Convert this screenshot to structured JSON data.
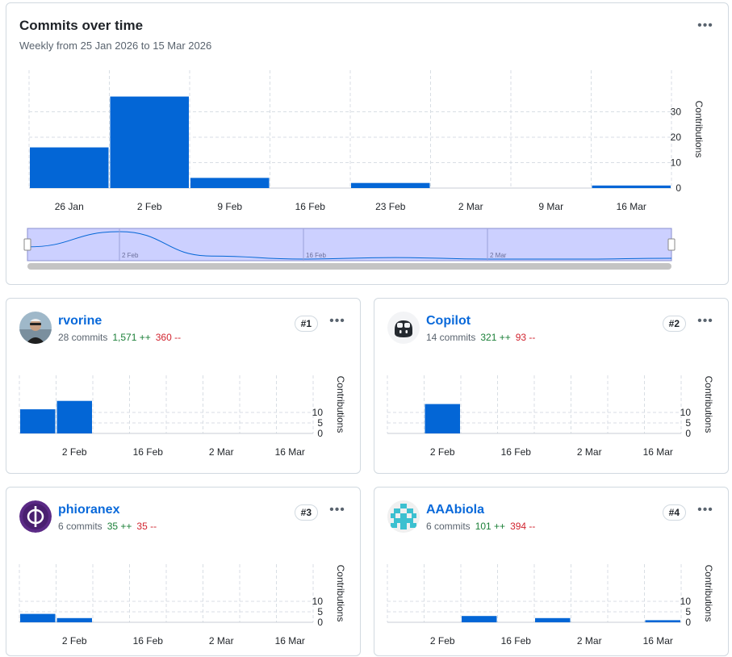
{
  "main": {
    "title": "Commits over time",
    "subtitle": "Weekly from 25 Jan 2026 to 15 Mar 2026",
    "menu_icon": "kebab-horizontal-icon"
  },
  "chart_data": [
    {
      "type": "bar",
      "categories": [
        "26 Jan",
        "2 Feb",
        "9 Feb",
        "16 Feb",
        "23 Feb",
        "2 Mar",
        "9 Mar",
        "16 Mar"
      ],
      "values": [
        16,
        36,
        4,
        0,
        2,
        0,
        0,
        1
      ],
      "title": "",
      "xlabel": "",
      "ylabel": "Contributions",
      "ylim": [
        0,
        40
      ],
      "yticks": [
        0,
        10,
        20,
        30
      ],
      "grid": true,
      "bar_color": "#0366d6",
      "brush": {
        "tick_labels": [
          "2 Feb",
          "16 Feb",
          "2 Mar"
        ],
        "fill_color": "#ccd0ff",
        "line_color": "#0366d6"
      }
    },
    {
      "type": "bar",
      "categories": [
        "26 Jan",
        "2 Feb",
        "9 Feb",
        "16 Feb",
        "23 Feb",
        "2 Mar",
        "9 Mar",
        "16 Mar"
      ],
      "x_tick_labels": [
        "2 Feb",
        "16 Feb",
        "2 Mar",
        "16 Mar"
      ],
      "values": [
        11.5,
        15.5,
        0,
        0,
        0,
        0,
        0,
        0
      ],
      "ylabel": "Contributions",
      "ylim": [
        0,
        20
      ],
      "yticks": [
        0,
        5,
        10
      ],
      "grid": true,
      "bar_color": "#0366d6"
    },
    {
      "type": "bar",
      "categories": [
        "26 Jan",
        "2 Feb",
        "9 Feb",
        "16 Feb",
        "23 Feb",
        "2 Mar",
        "9 Mar",
        "16 Mar"
      ],
      "x_tick_labels": [
        "2 Feb",
        "16 Feb",
        "2 Mar",
        "16 Mar"
      ],
      "values": [
        0,
        14,
        0,
        0,
        0,
        0,
        0,
        0
      ],
      "ylabel": "Contributions",
      "ylim": [
        0,
        20
      ],
      "yticks": [
        0,
        5,
        10
      ],
      "grid": true,
      "bar_color": "#0366d6"
    },
    {
      "type": "bar",
      "categories": [
        "26 Jan",
        "2 Feb",
        "9 Feb",
        "16 Feb",
        "23 Feb",
        "2 Mar",
        "9 Mar",
        "16 Mar"
      ],
      "x_tick_labels": [
        "2 Feb",
        "16 Feb",
        "2 Mar",
        "16 Mar"
      ],
      "values": [
        4,
        2,
        0,
        0,
        0,
        0,
        0,
        0
      ],
      "ylabel": "Contributions",
      "ylim": [
        0,
        20
      ],
      "yticks": [
        0,
        5,
        10
      ],
      "grid": true,
      "bar_color": "#0366d6"
    },
    {
      "type": "bar",
      "categories": [
        "26 Jan",
        "2 Feb",
        "9 Feb",
        "16 Feb",
        "23 Feb",
        "2 Mar",
        "9 Mar",
        "16 Mar"
      ],
      "x_tick_labels": [
        "2 Feb",
        "16 Feb",
        "2 Mar",
        "16 Mar"
      ],
      "values": [
        0,
        0,
        3,
        0,
        2,
        0,
        0,
        1
      ],
      "ylabel": "Contributions",
      "ylim": [
        0,
        20
      ],
      "yticks": [
        0,
        5,
        10
      ],
      "grid": true,
      "bar_color": "#0366d6"
    }
  ],
  "contributors": [
    {
      "name": "rvorine",
      "commits": "28 commits",
      "additions": "1,571 ++",
      "deletions": "360 --",
      "rank": "#1",
      "avatar_icon": "user-photo-avatar"
    },
    {
      "name": "Copilot",
      "commits": "14 commits",
      "additions": "321 ++",
      "deletions": "93 --",
      "rank": "#2",
      "avatar_icon": "copilot-avatar-icon"
    },
    {
      "name": "phioranex",
      "commits": "6 commits",
      "additions": "35 ++",
      "deletions": "35 --",
      "rank": "#3",
      "avatar_icon": "phi-logo-avatar"
    },
    {
      "name": "AAAbiola",
      "commits": "6 commits",
      "additions": "101 ++",
      "deletions": "394 --",
      "rank": "#4",
      "avatar_icon": "identicon-avatar"
    }
  ],
  "colors": {
    "link": "#0969da",
    "additions": "#1a7f37",
    "deletions": "#d1242f",
    "bar": "#0366d6",
    "border": "#d1d9e0"
  }
}
